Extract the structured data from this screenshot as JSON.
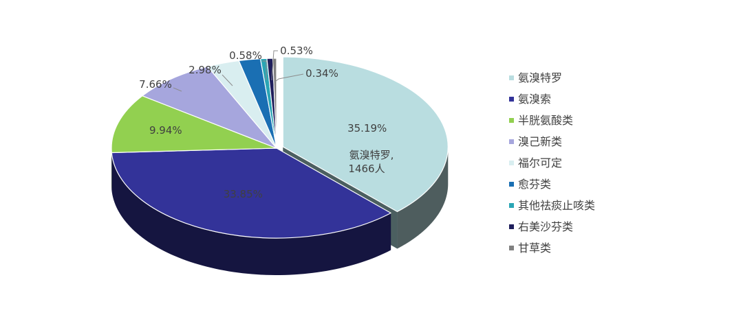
{
  "chart_data": {
    "type": "pie",
    "style": "3d-exploded",
    "title": "",
    "legend_position": "right",
    "slices": [
      {
        "name": "氨溴特罗",
        "value": 35.19,
        "label": "35.19%",
        "color": "#b9dde0"
      },
      {
        "name": "氨溴索",
        "value": 33.85,
        "label": "33.85%",
        "color": "#333399"
      },
      {
        "name": "半胱氨酸类",
        "value": 9.94,
        "label": "9.94%",
        "color": "#92d050"
      },
      {
        "name": "溴己新类",
        "value": 7.66,
        "label": "7.66%",
        "color": "#a6a6dd"
      },
      {
        "name": "福尔可定",
        "value": 2.98,
        "label": "2.98%",
        "color": "#d9eef0"
      },
      {
        "name": "愈芬类",
        "value": 1.96,
        "label": "",
        "color": "#1a6fb3"
      },
      {
        "name": "其他祛痰止咳类",
        "value": 0.58,
        "label": "0.58%",
        "color": "#2aa5b5"
      },
      {
        "name": "右美沙芬类",
        "value": 0.53,
        "label": "0.53%",
        "color": "#1f1f5c"
      },
      {
        "name": "甘草类",
        "value": 0.34,
        "label": "0.34%",
        "color": "#808080"
      }
    ],
    "annotation": {
      "line1": "氨溴特罗,",
      "line2": "1466人"
    }
  }
}
